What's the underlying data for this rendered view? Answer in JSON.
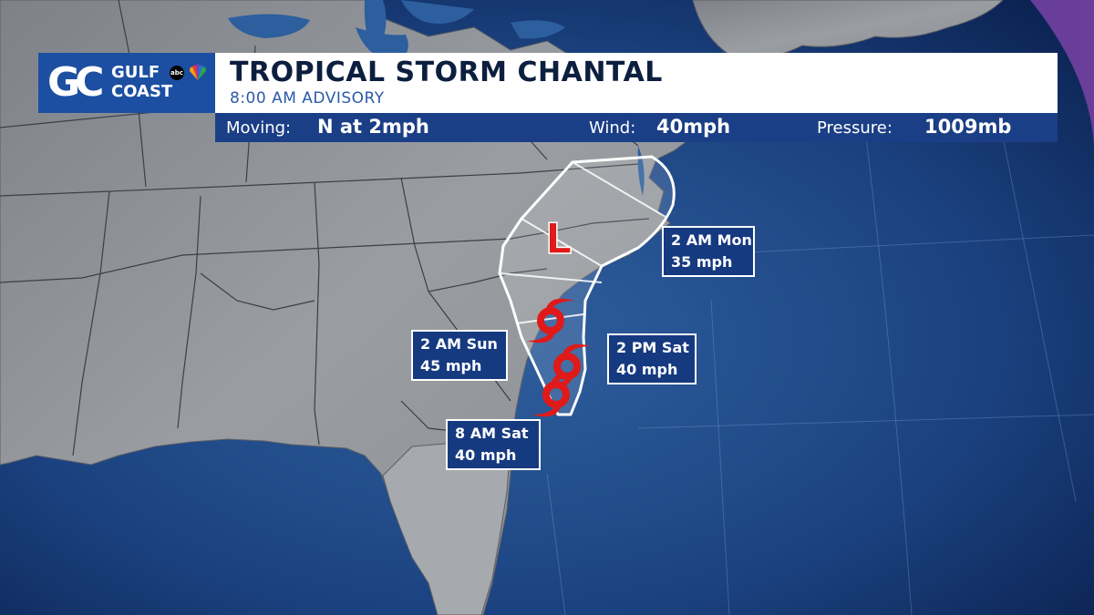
{
  "brand": {
    "mark": "GC",
    "word1": "GULF",
    "word2": "COAST",
    "network_icons": [
      "abc-logo",
      "nbc-peacock-icon"
    ],
    "color": "#1c4fa1"
  },
  "header": {
    "title": "TROPICAL STORM CHANTAL",
    "subtitle": "8:00 AM ADVISORY"
  },
  "info_bar": {
    "moving_label": "Moving:",
    "moving_value": "N at 2mph",
    "wind_label": "Wind:",
    "wind_value": "40mph",
    "pressure_label": "Pressure:",
    "pressure_value": "1009mb",
    "color": "#1b3f86"
  },
  "map": {
    "low_marker_label": "L",
    "marker_color": "#e01919",
    "cone_color": "#ffffff",
    "forecast_points": [
      {
        "time": "8 AM Sat",
        "wind": "40 mph",
        "icon": "tropical-storm-icon"
      },
      {
        "time": "2 PM Sat",
        "wind": "40 mph",
        "icon": "tropical-storm-icon"
      },
      {
        "time": "2 AM Sun",
        "wind": "45 mph",
        "icon": "tropical-storm-icon"
      },
      {
        "time": "2 AM Mon",
        "wind": "35 mph",
        "icon": "low-pressure-icon"
      }
    ]
  }
}
